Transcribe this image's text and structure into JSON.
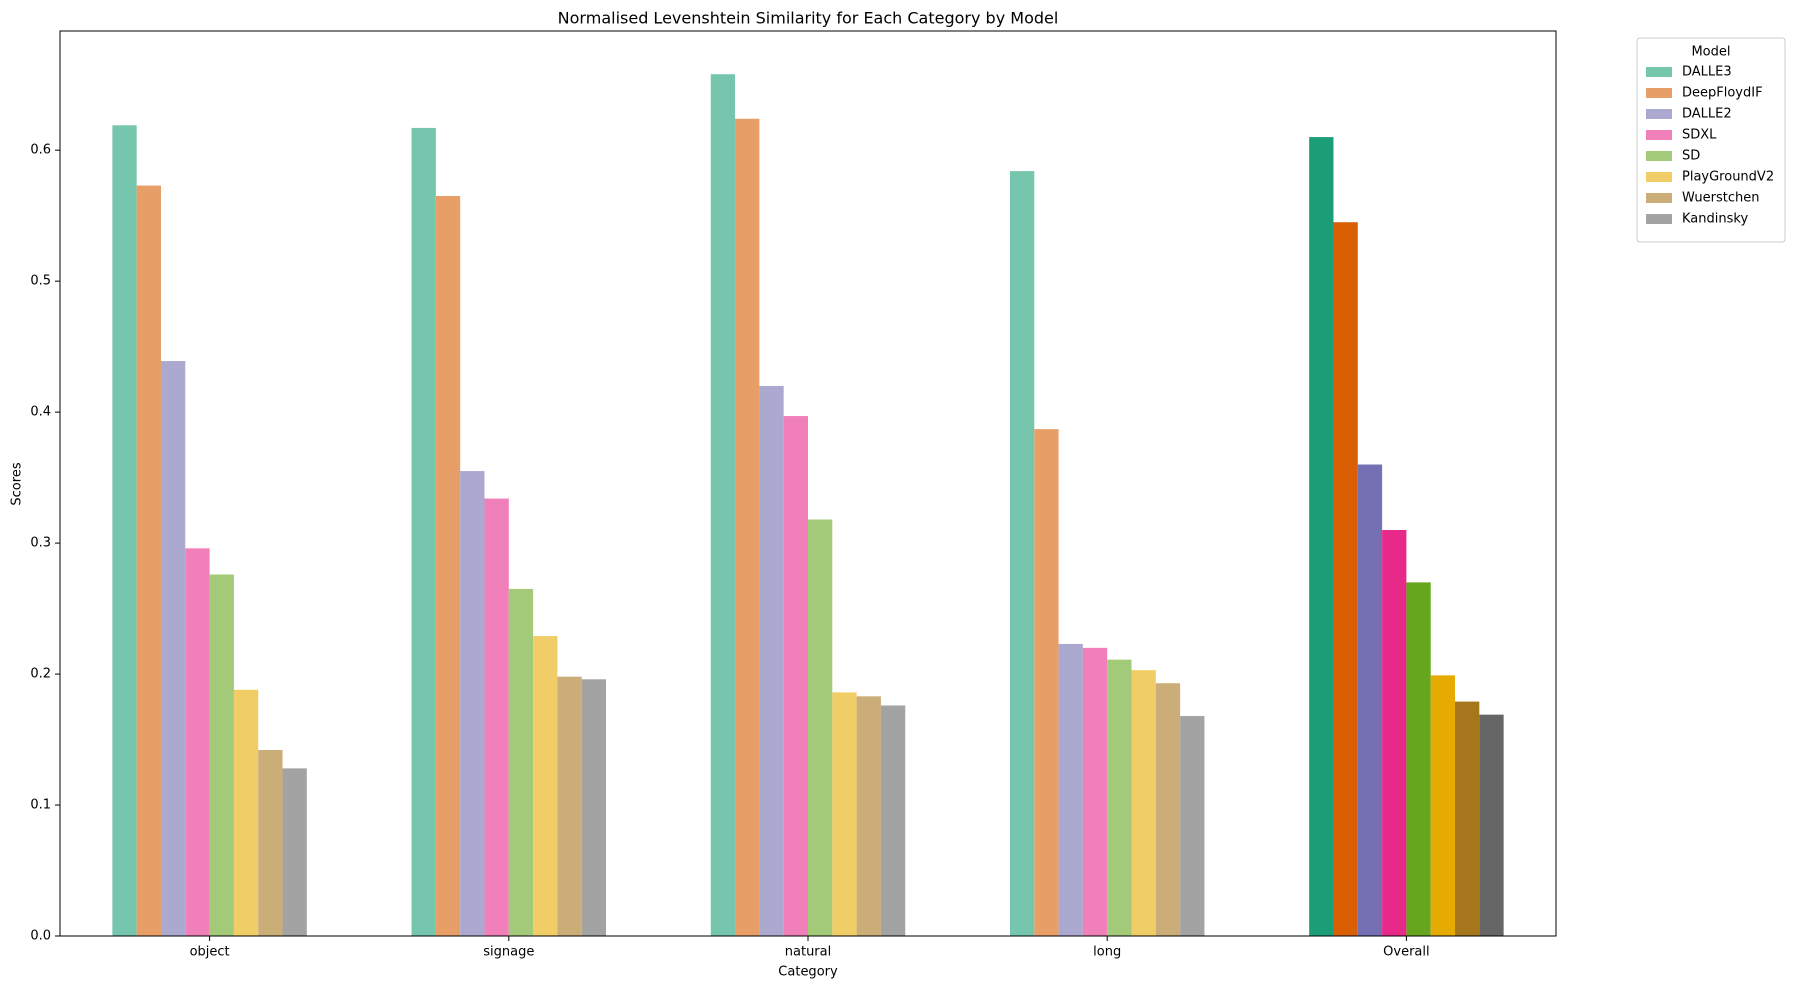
{
  "chart_data": {
    "type": "bar",
    "title": "Normalised Levenshtein Similarity for Each Category by Model",
    "x_label": "Category",
    "y_label": "Scores",
    "legend_title": "Model",
    "legend_position": "outside-right",
    "categories": [
      "object",
      "signage",
      "natural",
      "long",
      "Overall"
    ],
    "series": [
      {
        "name": "DALLE3",
        "colors": [
          "#76c5ad",
          "#76c5ad",
          "#76c5ad",
          "#76c5ad",
          "#1b9e77"
        ],
        "values": [
          0.619,
          0.617,
          0.658,
          0.584,
          0.61
        ]
      },
      {
        "name": "DeepFloydIF",
        "colors": [
          "#e89f67",
          "#e89f67",
          "#e89f67",
          "#e89f67",
          "#d95f02"
        ],
        "values": [
          0.573,
          0.565,
          0.624,
          0.387,
          0.545
        ]
      },
      {
        "name": "DALLE2",
        "colors": [
          "#aca9d1",
          "#aca9d1",
          "#aca9d1",
          "#aca9d1",
          "#7570b3"
        ],
        "values": [
          0.439,
          0.355,
          0.42,
          0.223,
          0.36
        ]
      },
      {
        "name": "SDXL",
        "colors": [
          "#f17fb9",
          "#f17fb9",
          "#f17fb9",
          "#f17fb9",
          "#e7298a"
        ],
        "values": [
          0.296,
          0.334,
          0.397,
          0.22,
          0.31
        ]
      },
      {
        "name": "SD",
        "colors": [
          "#a3ca78",
          "#a3ca78",
          "#a3ca78",
          "#a3ca78",
          "#66a61e"
        ],
        "values": [
          0.276,
          0.265,
          0.318,
          0.211,
          0.27
        ]
      },
      {
        "name": "PlayGroundV2",
        "colors": [
          "#f0cd67",
          "#f0cd67",
          "#f0cd67",
          "#f0cd67",
          "#e6ab02"
        ],
        "values": [
          0.188,
          0.229,
          0.186,
          0.203,
          0.199
        ]
      },
      {
        "name": "Wuerstchen",
        "colors": [
          "#caad77",
          "#caad77",
          "#caad77",
          "#caad77",
          "#a6761d"
        ],
        "values": [
          0.142,
          0.198,
          0.183,
          0.193,
          0.179
        ]
      },
      {
        "name": "Kandinsky",
        "colors": [
          "#a3a3a3",
          "#a3a3a3",
          "#a3a3a3",
          "#a3a3a3",
          "#666666"
        ],
        "values": [
          0.128,
          0.196,
          0.176,
          0.168,
          0.169
        ]
      }
    ],
    "ylim": [
      0,
      0.691
    ],
    "yticks": [
      {
        "value": 0,
        "label": "0.0"
      },
      0.1,
      0.2,
      0.3,
      0.4,
      0.5,
      0.6
    ],
    "grid": false
  }
}
